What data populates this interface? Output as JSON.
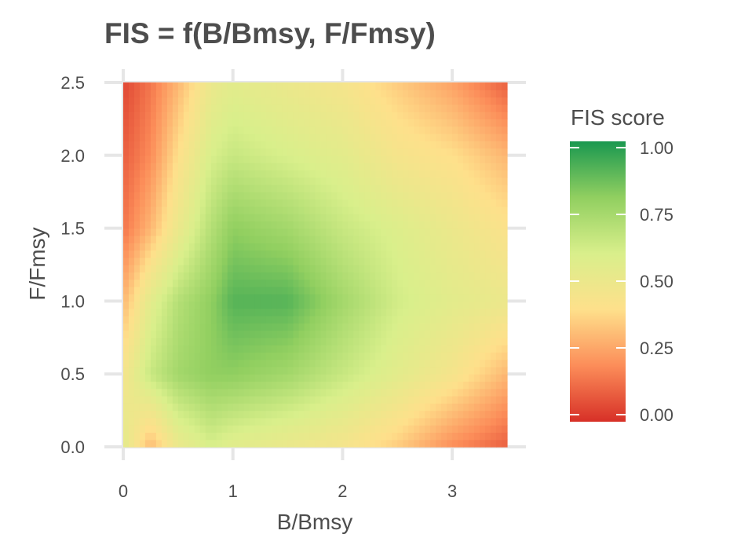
{
  "chart_data": {
    "type": "heatmap",
    "title": "FIS = f(B/Bmsy, F/Fmsy)",
    "xlabel": "B/Bmsy",
    "ylabel": "F/Fmsy",
    "xlim": [
      0,
      3.5
    ],
    "ylim": [
      0,
      2.5
    ],
    "x_ticks": [
      0,
      1,
      2,
      3
    ],
    "x_tick_labels": [
      "0",
      "1",
      "2",
      "3"
    ],
    "y_ticks": [
      0,
      0.5,
      1.0,
      1.5,
      2.0,
      2.5
    ],
    "y_tick_labels": [
      "0.0",
      "0.5",
      "1.0",
      "1.5",
      "2.0",
      "2.5"
    ],
    "grid": true,
    "z_sample": {
      "x": [
        0,
        0.25,
        0.5,
        0.8,
        1.0,
        1.5,
        2.0,
        2.5,
        3.0,
        3.5
      ],
      "y": [
        0,
        0.5,
        1.0,
        1.5,
        2.0,
        2.5
      ],
      "z": [
        [
          0.55,
          0.3,
          0.5,
          0.6,
          0.55,
          0.5,
          0.45,
          0.35,
          0.2,
          0.1
        ],
        [
          0.45,
          0.65,
          0.75,
          0.8,
          0.8,
          0.75,
          0.65,
          0.55,
          0.45,
          0.3
        ],
        [
          0.3,
          0.55,
          0.7,
          0.8,
          0.9,
          0.9,
          0.75,
          0.62,
          0.55,
          0.5
        ],
        [
          0.15,
          0.3,
          0.5,
          0.7,
          0.8,
          0.75,
          0.65,
          0.58,
          0.5,
          0.42
        ],
        [
          0.1,
          0.2,
          0.4,
          0.6,
          0.65,
          0.6,
          0.55,
          0.45,
          0.4,
          0.3
        ],
        [
          0.05,
          0.15,
          0.3,
          0.5,
          0.55,
          0.5,
          0.45,
          0.35,
          0.25,
          0.1
        ]
      ]
    },
    "legend": {
      "title": "FIS score",
      "position": "right",
      "range": [
        0,
        1
      ],
      "ticks": [
        0,
        0.25,
        0.5,
        0.75,
        1.0
      ],
      "tick_labels": [
        "0.00",
        "0.25",
        "0.50",
        "0.75",
        "1.00"
      ],
      "colors": [
        "#d73027",
        "#fc8d59",
        "#fee08b",
        "#d9ef8b",
        "#91cf60",
        "#1a9850"
      ]
    }
  }
}
